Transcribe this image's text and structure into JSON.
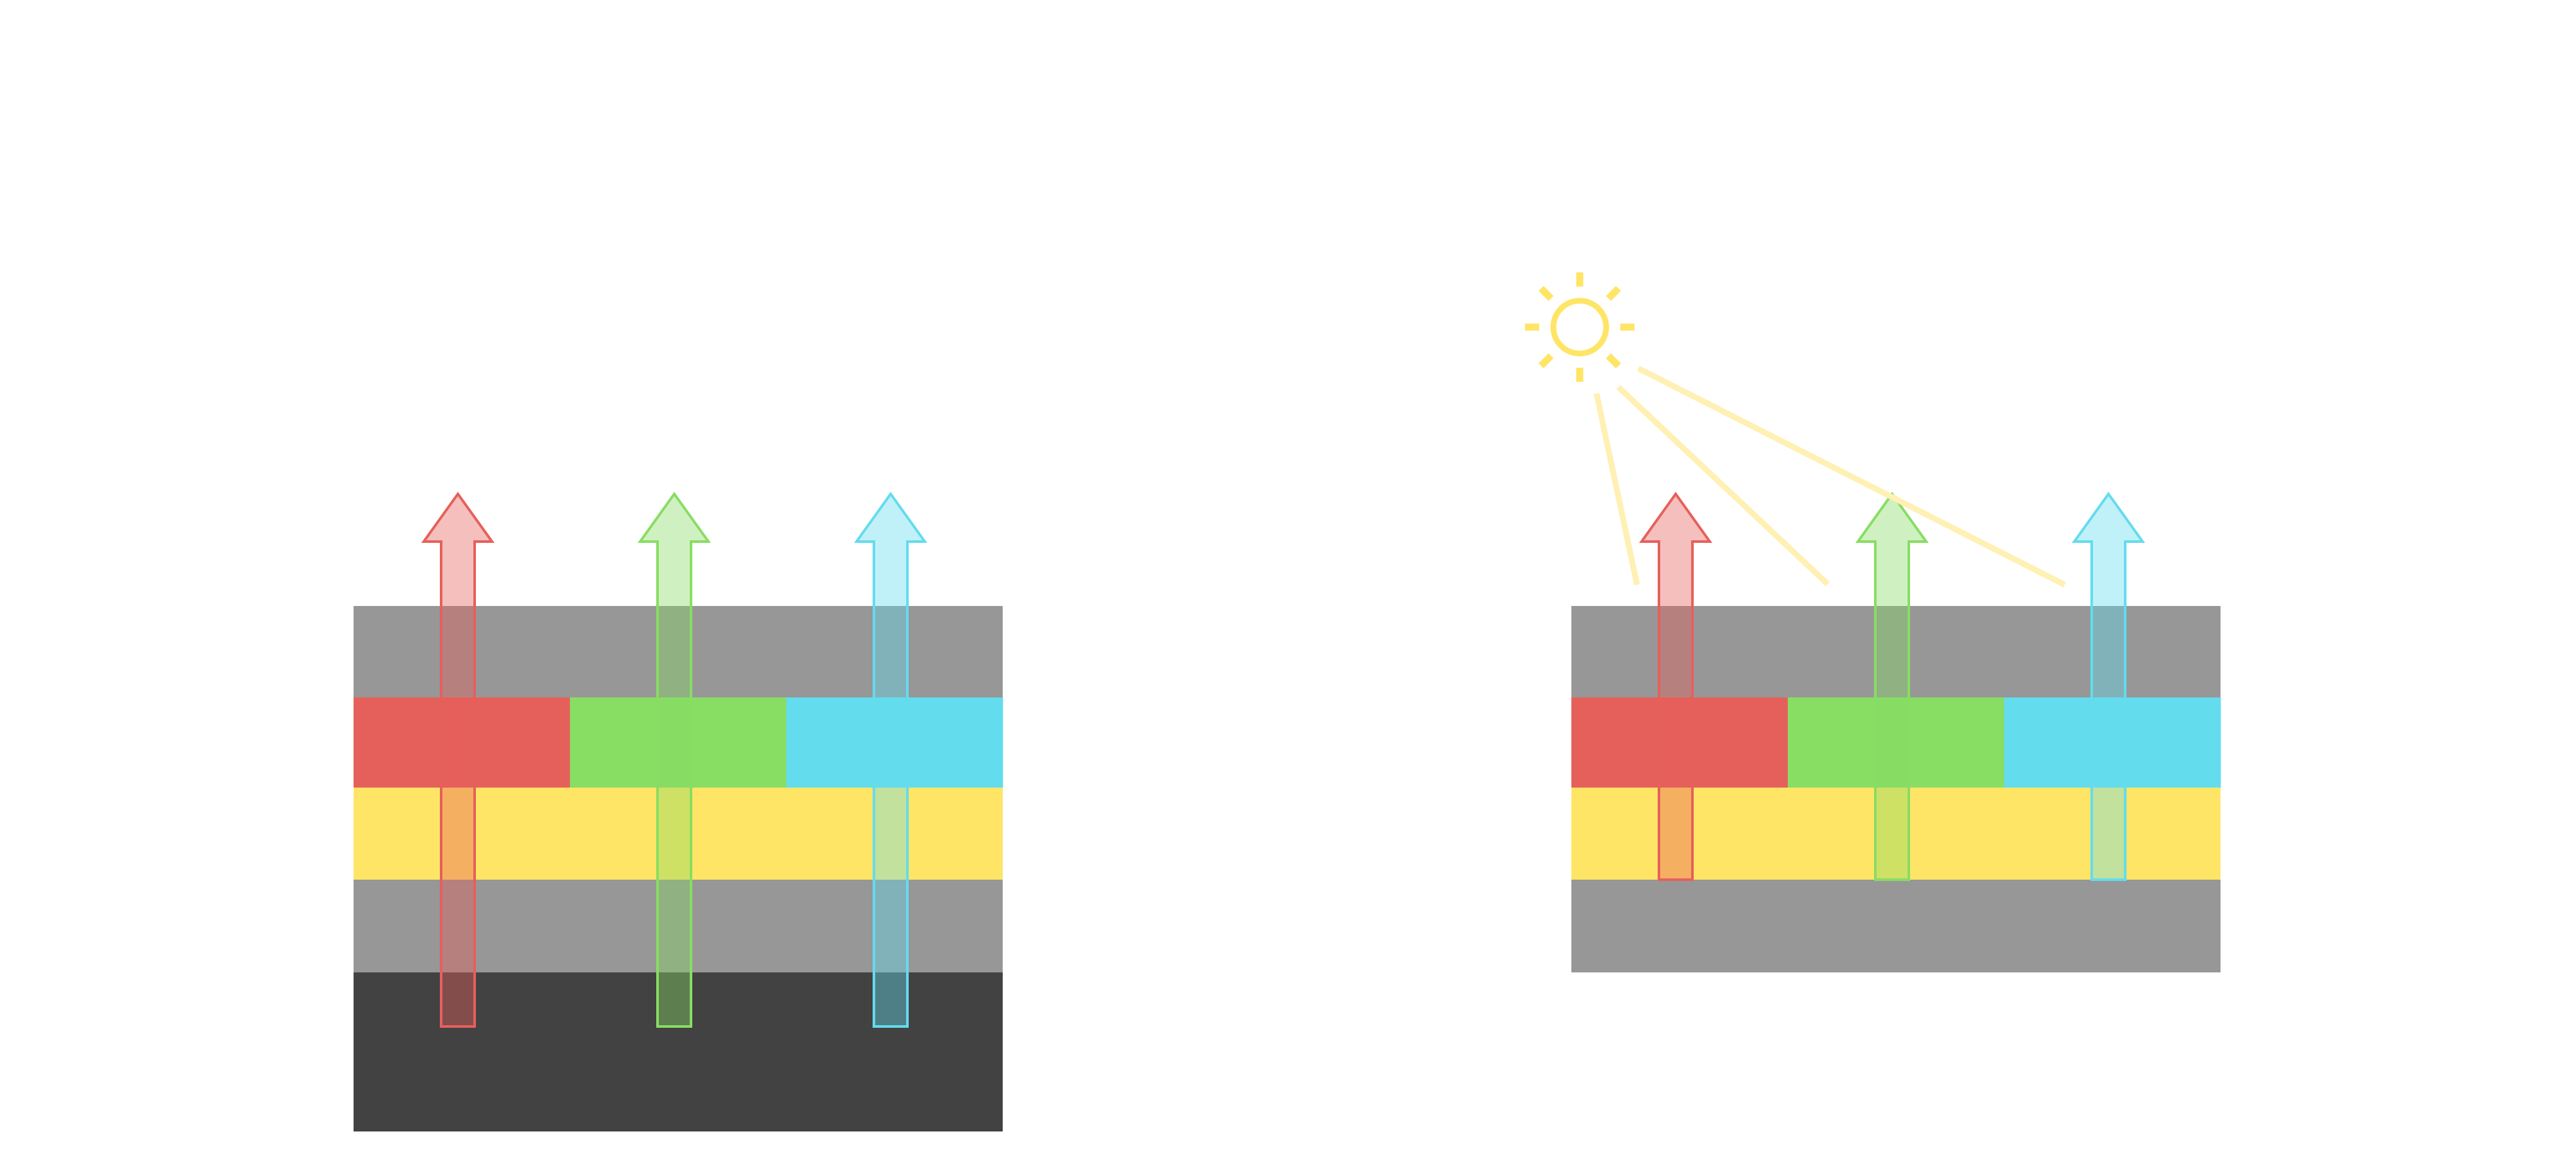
{
  "colors": {
    "background": "#ffffff",
    "layer_gray": "#979797",
    "layer_dark": "#424242",
    "layer_yellow": "#ffe566",
    "filter_red": "#e6605b",
    "filter_green": "#88dd63",
    "filter_cyan": "#63dcee",
    "sun": "#ffe566",
    "sun_ray_beam": "#fff0b3"
  },
  "panels": [
    {
      "name": "left-stack",
      "layers": [
        "gray",
        "color-filters",
        "yellow",
        "gray",
        "dark"
      ],
      "light_source": "backlight"
    },
    {
      "name": "right-stack",
      "layers": [
        "gray",
        "color-filters",
        "yellow",
        "gray"
      ],
      "light_source": "sun"
    }
  ],
  "icons": [
    "sun-icon",
    "arrow-up-icon"
  ]
}
